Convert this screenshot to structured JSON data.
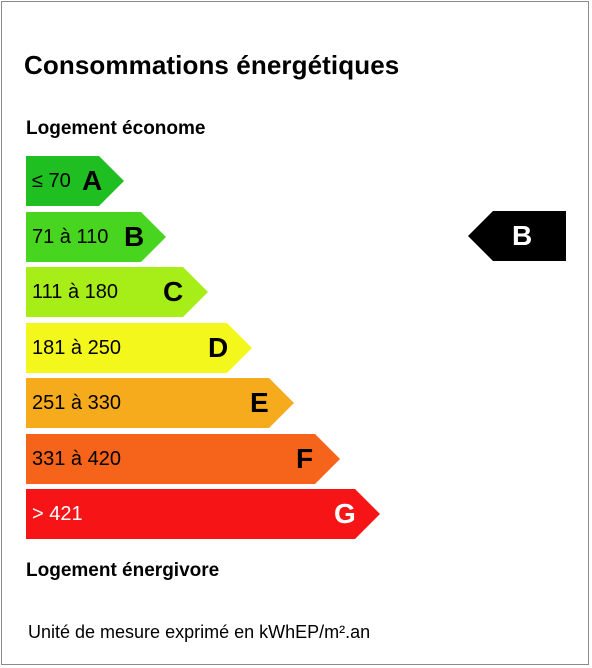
{
  "title": "Consommations énergétiques",
  "top_label": "Logement économe",
  "bottom_label": "Logement énergivore",
  "unit_label": "Unité de mesure exprimé en kWhEP/m².an",
  "current_class": "B",
  "marker_color": "#000000",
  "classes": [
    {
      "letter": "A",
      "range": "≤ 70",
      "color": "#1fbf22"
    },
    {
      "letter": "B",
      "range": "71 à 110",
      "color": "#48d520"
    },
    {
      "letter": "C",
      "range": "111 à 180",
      "color": "#a7ee19"
    },
    {
      "letter": "D",
      "range": "181 à 250",
      "color": "#f4f71c"
    },
    {
      "letter": "E",
      "range": "251 à 330",
      "color": "#f6ab1d"
    },
    {
      "letter": "F",
      "range": "331 à 420",
      "color": "#f6631b"
    },
    {
      "letter": "G",
      "range": "> 421",
      "color": "#f61417"
    }
  ]
}
